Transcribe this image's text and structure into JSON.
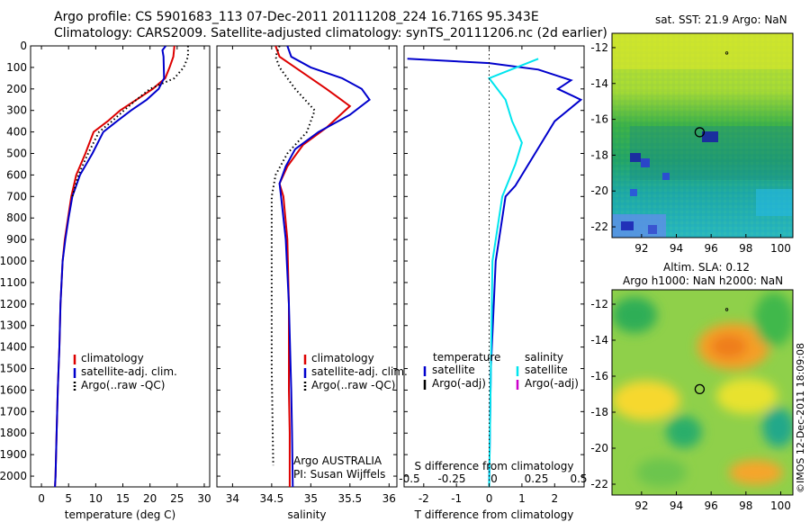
{
  "header": {
    "line1": "Argo profile: CS 5901683_113 07-Dec-2011 20111208_224 16.716S 95.343E",
    "line2": "Climatology: CARS2009. Satellite-adjusted climatology: synTS_20111206.nc (2d earlier)"
  },
  "sst_title": "sat. SST: 21.9 Argo: NaN",
  "sla_title_1": "Altim. SLA: 0.12",
  "sla_title_2": "Argo h1000: NaN h2000: NaN",
  "side_note": "©IMOS 12-Dec-2011 18:09:08",
  "platform_note_1": "Argo AUSTRALIA",
  "platform_note_2": "PI: Susan Wijffels",
  "colors": {
    "climatology": "#dd0000",
    "satellite": "#0000cc",
    "argo": "#000000",
    "satellite_s": "#00e5ee",
    "argo_adj_s": "#cc00cc"
  },
  "chart_data": [
    {
      "type": "line",
      "xlabel": "temperature (deg C)",
      "ylabel": "",
      "xlim": [
        -2,
        31
      ],
      "ylim": [
        2050,
        0
      ],
      "xticks": [
        0,
        5,
        10,
        15,
        20,
        25,
        30
      ],
      "yticks": [
        0,
        100,
        200,
        300,
        400,
        500,
        600,
        700,
        800,
        900,
        1000,
        1100,
        1200,
        1300,
        1400,
        1500,
        1600,
        1700,
        1800,
        1900,
        2000
      ],
      "legend": [
        "climatology",
        "satellite-adj. clim.",
        "Argo(..raw -QC)"
      ],
      "series": [
        {
          "name": "climatology",
          "style": "solid",
          "color": "climatology",
          "x": [
            24.5,
            24.3,
            23.6,
            22.8,
            20.5,
            17.5,
            14.5,
            12.2,
            9.6,
            8.1,
            6.4,
            5.5,
            4.9,
            4.3,
            3.9,
            3.5,
            3.3,
            3.0,
            2.8,
            2.7,
            2.6,
            2.5
          ],
          "y": [
            0,
            50,
            100,
            150,
            200,
            250,
            300,
            350,
            400,
            500,
            600,
            700,
            800,
            900,
            1000,
            1200,
            1400,
            1600,
            1800,
            1900,
            2000,
            2050
          ]
        },
        {
          "name": "satellite-adj. clim.",
          "style": "solid",
          "color": "satellite",
          "x": [
            22.9,
            22.3,
            22.5,
            22.6,
            21.6,
            19.4,
            16.5,
            13.9,
            11.4,
            9.4,
            7.1,
            5.7,
            5.0,
            4.4,
            3.9,
            3.5,
            3.3,
            3.0,
            2.8,
            2.7,
            2.6,
            2.5
          ],
          "y": [
            0,
            20,
            50,
            150,
            200,
            250,
            300,
            350,
            400,
            500,
            600,
            700,
            800,
            900,
            1000,
            1200,
            1400,
            1600,
            1800,
            1900,
            2000,
            2050
          ]
        },
        {
          "name": "Argo(..raw -QC)",
          "style": "dotted",
          "color": "argo",
          "x": [
            27.0,
            27.0,
            26.2,
            24.5,
            20.0,
            17.5,
            15.2,
            13.0,
            10.6,
            8.6,
            6.8,
            5.7
          ],
          "y": [
            0,
            50,
            100,
            150,
            200,
            250,
            300,
            350,
            400,
            500,
            600,
            700
          ]
        }
      ]
    },
    {
      "type": "line",
      "xlabel": "salinity",
      "ylabel": "",
      "xlim": [
        33.8,
        36.1
      ],
      "ylim": [
        2050,
        0
      ],
      "xticks": [
        34,
        34.5,
        35,
        35.5,
        36
      ],
      "xticklabels": [
        "34",
        "34.5",
        "35",
        "35.5",
        "36"
      ],
      "legend": [
        "climatology",
        "satellite-adj. clim.",
        "Argo(..raw -QC)"
      ],
      "series": [
        {
          "name": "climatology",
          "style": "solid",
          "color": "climatology",
          "x": [
            34.55,
            34.6,
            34.8,
            35.2,
            35.5,
            35.2,
            34.9,
            34.7,
            34.6,
            34.65,
            34.7,
            34.72,
            34.72,
            34.73,
            34.73
          ],
          "y": [
            0,
            50,
            100,
            200,
            280,
            380,
            460,
            560,
            640,
            700,
            900,
            1200,
            1600,
            1800,
            2050
          ]
        },
        {
          "name": "satellite-adj. clim.",
          "style": "solid",
          "color": "satellite",
          "x": [
            34.7,
            34.75,
            35.0,
            35.4,
            35.65,
            35.75,
            35.5,
            35.1,
            34.8,
            34.68,
            34.6,
            34.62,
            34.68,
            34.72,
            34.75,
            34.76,
            34.77
          ],
          "y": [
            0,
            50,
            100,
            150,
            200,
            250,
            320,
            400,
            480,
            560,
            640,
            700,
            900,
            1200,
            1600,
            1800,
            2050
          ]
        },
        {
          "name": "Argo(..raw -QC)",
          "style": "dotted",
          "color": "argo",
          "x": [
            34.6,
            34.55,
            34.6,
            34.8,
            35.05,
            34.95,
            34.7,
            34.55,
            34.5,
            34.5,
            34.5,
            34.52
          ],
          "y": [
            0,
            50,
            100,
            200,
            300,
            400,
            500,
            600,
            700,
            1000,
            1500,
            1950
          ]
        }
      ]
    },
    {
      "type": "line",
      "xlabel": "T difference from climatology",
      "top_label": "S difference from climatology",
      "ylabel": "",
      "xlim": [
        -2.6,
        2.9
      ],
      "ylim": [
        2050,
        0
      ],
      "xticks": [
        -2,
        -1,
        0,
        1,
        2
      ],
      "top_ticks": [
        -0.5,
        -0.25,
        0,
        0.25,
        0.5
      ],
      "top_ticklabels": [
        "-0.5",
        "-0.25",
        "0",
        "0.25",
        "0.5"
      ],
      "legend_temperature_title": "temperature",
      "legend_salinity_title": "salinity",
      "legend": {
        "temperature": [
          "satellite",
          "Argo(-adj)"
        ],
        "salinity": [
          "satellite",
          "Argo(-adj)"
        ]
      },
      "series": [
        {
          "name": "satellite",
          "group": "temperature",
          "style": "solid",
          "color": "satellite",
          "x": [
            -2.5,
            0.0,
            1.5,
            2.5,
            2.1,
            2.8,
            2.0,
            1.4,
            0.8,
            0.5,
            0.4,
            0.2,
            0.05,
            0.0
          ],
          "y": [
            60,
            80,
            110,
            160,
            200,
            250,
            350,
            500,
            650,
            700,
            800,
            1000,
            1500,
            2050
          ]
        },
        {
          "name": "satellite",
          "group": "salinity",
          "style": "solid",
          "color": "satellite_s",
          "x": [
            1.5,
            0.0,
            0.5,
            0.7,
            1.0,
            0.8,
            0.4,
            0.1,
            0.0
          ],
          "y": [
            60,
            150,
            250,
            350,
            450,
            550,
            700,
            1000,
            2050
          ]
        },
        {
          "name": "zero",
          "style": "dotted",
          "color": "argo",
          "x": [
            0,
            0
          ],
          "y": [
            0,
            2050
          ]
        }
      ]
    }
  ],
  "maps": {
    "xticks": [
      92,
      94,
      96,
      98,
      100
    ],
    "yticks": [
      -12,
      -14,
      -16,
      -18,
      -20,
      -22
    ],
    "xlim": [
      90.3,
      100.7
    ],
    "ylim": [
      -22.6,
      -11.2
    ],
    "argo_lon": 95.34,
    "argo_lat": -16.72,
    "marker_lon": 96.9,
    "marker_lat": -12.3
  }
}
